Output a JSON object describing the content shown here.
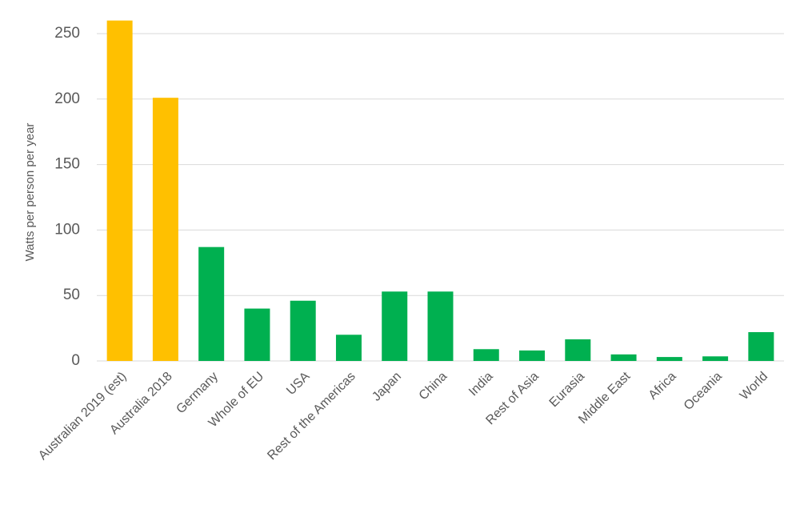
{
  "chart_data": {
    "type": "bar",
    "y_label": "Watts per person per year",
    "categories": [
      "Australian 2019 (est)",
      "Australia 2018",
      "Germany",
      "Whole of EU",
      "USA",
      "Rest of the Americas",
      "Japan",
      "China",
      "India",
      "Rest of Asia",
      "Eurasia",
      "Middle East",
      "Africa",
      "Oceania",
      "World"
    ],
    "values": [
      260,
      201,
      87,
      40,
      46,
      20,
      53,
      53,
      9,
      8,
      16.5,
      5,
      3,
      3.5,
      22
    ],
    "colors": [
      "#ffc000",
      "#ffc000",
      "#00b050",
      "#00b050",
      "#00b050",
      "#00b050",
      "#00b050",
      "#00b050",
      "#00b050",
      "#00b050",
      "#00b050",
      "#00b050",
      "#00b050",
      "#00b050",
      "#00b050"
    ],
    "ylim": [
      0,
      265
    ],
    "yticks": [
      0,
      50,
      100,
      150,
      200,
      250
    ],
    "grid": true
  }
}
